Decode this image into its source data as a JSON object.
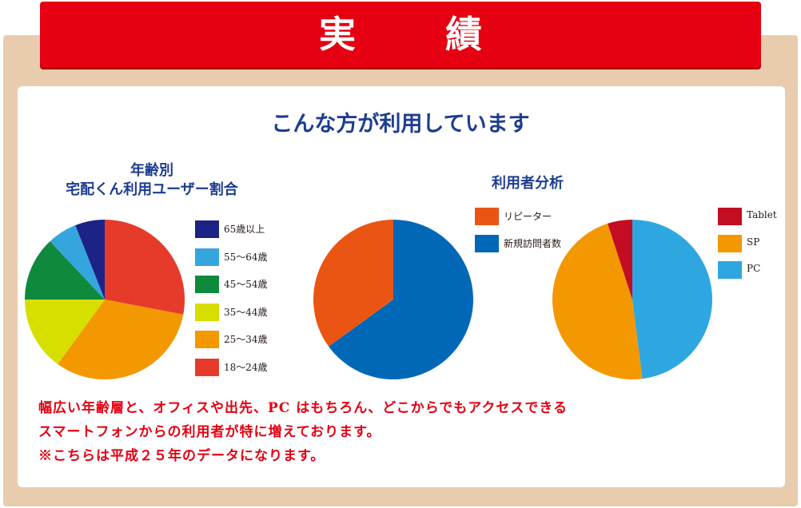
{
  "banner": {
    "title": "実 績"
  },
  "subtitle": "こんな方が利用しています",
  "chart_data": [
    {
      "type": "pie",
      "title_lines": [
        "年齢別",
        "宅配くん利用ユーザー割合"
      ],
      "categories": [
        "65歳以上",
        "55～64歳",
        "45～54歳",
        "35～44歳",
        "25～34歳",
        "18～24歳"
      ],
      "values": [
        6,
        6,
        13,
        15,
        32,
        28
      ],
      "colors": [
        "#1b2386",
        "#35a6dd",
        "#0f8a3c",
        "#d7df00",
        "#f39800",
        "#e63b2b"
      ],
      "start": "top, clockwise, last category first"
    },
    {
      "type": "pie",
      "title_lines": [
        "利用者分析"
      ],
      "categories": [
        "リピーター",
        "新規訪問者数"
      ],
      "values": [
        35,
        65
      ],
      "colors": [
        "#ea5514",
        "#0068b7"
      ],
      "start": "top, clockwise, last category first"
    },
    {
      "type": "pie",
      "title_lines": [],
      "categories": [
        "Tablet",
        "SP",
        "PC"
      ],
      "values": [
        5,
        47,
        48
      ],
      "colors": [
        "#c30d23",
        "#f39800",
        "#2ea7e0"
      ],
      "start": "top, counter-clockwise, first category first"
    }
  ],
  "note": {
    "lines": [
      "幅広い年齢層と、オフィスや出先、PC はもちろん、どこからでもアクセスできる",
      "スマートフォンからの利用者が特に増えております。",
      "※こちらは平成２５年のデータになります。"
    ]
  }
}
